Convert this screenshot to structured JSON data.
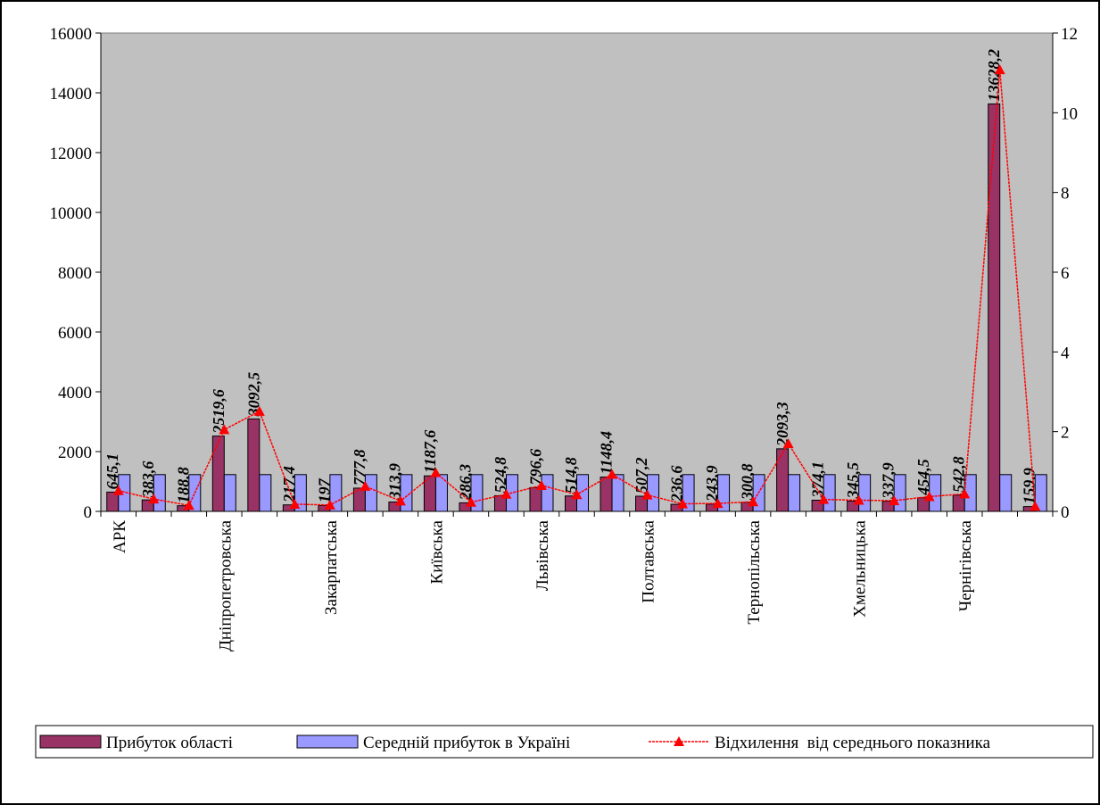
{
  "chart_data": {
    "type": "bar",
    "categories": [
      "АРК",
      null,
      null,
      "Дніпропетровська",
      null,
      null,
      "Закарпатська",
      null,
      null,
      "Київська",
      null,
      null,
      "Львівська",
      null,
      null,
      "Полтавська",
      null,
      null,
      "Тернопільська",
      null,
      null,
      "Хмельницька",
      null,
      null,
      "Чернігівська",
      null,
      null
    ],
    "series": [
      {
        "name": "Прибуток області",
        "type": "bar",
        "color": "#993366",
        "values": [
          645.1,
          383.6,
          188.8,
          2519.6,
          3092.5,
          217.4,
          197,
          777.8,
          313.9,
          1187.6,
          286.3,
          524.8,
          796.6,
          514.8,
          1148.4,
          507.2,
          236.6,
          243.9,
          300.8,
          2093.3,
          374.1,
          345.5,
          337.9,
          454.5,
          542.8,
          13628.2,
          159.9
        ],
        "value_labels": [
          "645,1",
          "383,6",
          "188,8",
          "2519,6",
          "3092,5",
          "217,4",
          "197",
          "777,8",
          "313,9",
          "1187,6",
          "286,3",
          "524,8",
          "796,6",
          "514,8",
          "1148,4",
          "507,2",
          "236,6",
          "243,9",
          "300,8",
          "2093,3",
          "374,1",
          "345,5",
          "337,9",
          "454,5",
          "542,8",
          "13628,2",
          "159,9"
        ]
      },
      {
        "name": "Середній прибуток в Україні",
        "type": "bar",
        "color": "#9999ff",
        "values": [
          1230,
          1230,
          1230,
          1230,
          1230,
          1230,
          1230,
          1230,
          1230,
          1230,
          1230,
          1230,
          1230,
          1230,
          1230,
          1230,
          1230,
          1230,
          1230,
          1230,
          1230,
          1230,
          1230,
          1230,
          1230,
          1230,
          1230
        ]
      },
      {
        "name": "Відхилення  від середнього показника",
        "type": "line",
        "axis": "y2",
        "color": "#ff0000",
        "values": [
          0.52,
          0.31,
          0.15,
          2.05,
          2.51,
          0.18,
          0.16,
          0.63,
          0.26,
          0.97,
          0.23,
          0.43,
          0.65,
          0.42,
          0.93,
          0.41,
          0.19,
          0.2,
          0.24,
          1.7,
          0.3,
          0.28,
          0.27,
          0.37,
          0.44,
          11.08,
          0.13
        ]
      }
    ],
    "ylim": [
      0,
      16000
    ],
    "yticks": [
      0,
      2000,
      4000,
      6000,
      8000,
      10000,
      12000,
      14000,
      16000
    ],
    "y2lim": [
      0,
      12
    ],
    "y2ticks": [
      0,
      2,
      4,
      6,
      8,
      10,
      12
    ],
    "grid": false,
    "legend": "bottom"
  }
}
